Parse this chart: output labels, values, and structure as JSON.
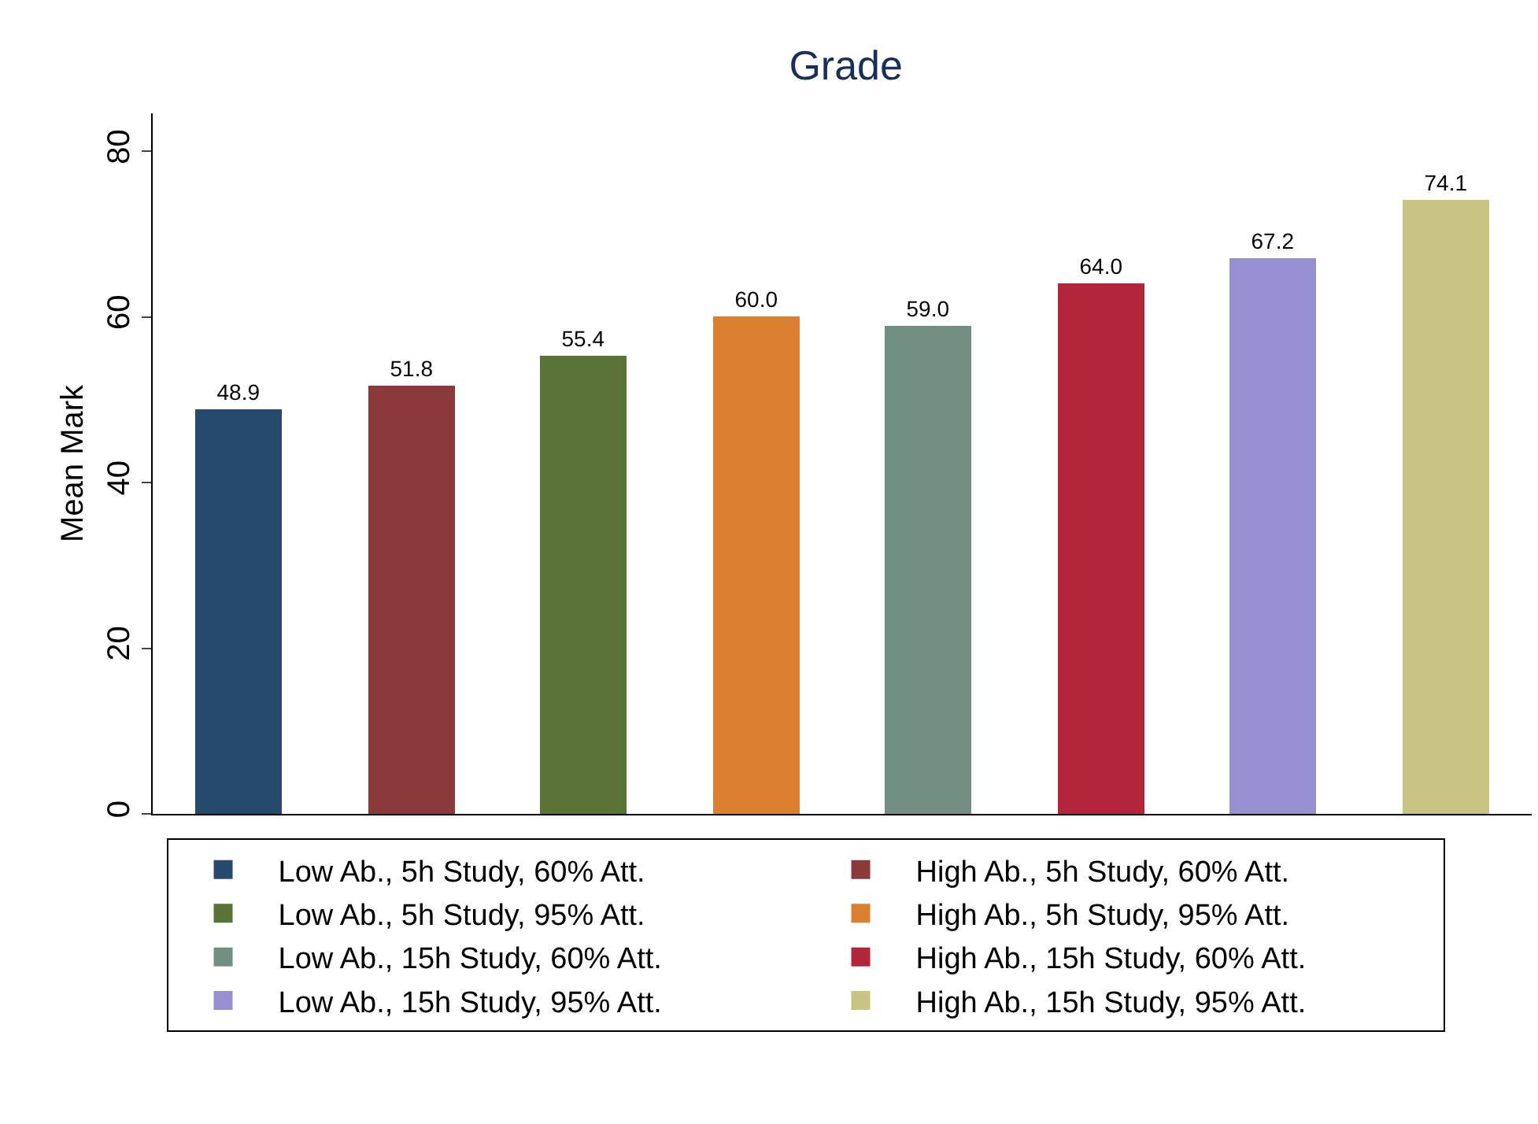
{
  "chart_data": {
    "type": "bar",
    "title": "Grade",
    "ylabel": "Mean Mark",
    "categories": [
      null,
      null,
      null,
      null,
      null,
      null,
      null,
      null
    ],
    "series": [
      {
        "name": "Low Ab., 5h Study, 60% Att.",
        "color": "#264a6e",
        "values": [
          48.9,
          null,
          null,
          null,
          null,
          null,
          null,
          null
        ],
        "value_labels": [
          "48.9",
          null,
          null,
          null,
          null,
          null,
          null,
          null
        ]
      },
      {
        "name": "High Ab., 5h Study, 60% Att.",
        "color": "#8b3a3c",
        "values": [
          null,
          51.8,
          null,
          null,
          null,
          null,
          null,
          null
        ],
        "value_labels": [
          null,
          "51.8",
          null,
          null,
          null,
          null,
          null,
          null
        ]
      },
      {
        "name": "Low Ab., 5h Study, 95% Att.",
        "color": "#5a7336",
        "values": [
          null,
          null,
          55.4,
          null,
          null,
          null,
          null,
          null
        ],
        "value_labels": [
          null,
          null,
          "55.4",
          null,
          null,
          null,
          null,
          null
        ]
      },
      {
        "name": "High Ab., 5h Study, 95% Att.",
        "color": "#db8030",
        "values": [
          null,
          null,
          null,
          60,
          null,
          null,
          null,
          null
        ],
        "value_labels": [
          null,
          null,
          null,
          "60.0",
          null,
          null,
          null,
          null
        ]
      },
      {
        "name": "Low Ab., 15h Study, 60% Att.",
        "color": "#738f83",
        "values": [
          null,
          null,
          null,
          null,
          59,
          null,
          null,
          null
        ],
        "value_labels": [
          null,
          null,
          null,
          null,
          "59.0",
          null,
          null,
          null
        ]
      },
      {
        "name": "High Ab., 15h Study, 60% Att.",
        "color": "#b3253a",
        "values": [
          null,
          null,
          null,
          null,
          null,
          64,
          null,
          null
        ],
        "value_labels": [
          null,
          null,
          null,
          null,
          null,
          "64.0",
          null,
          null
        ]
      },
      {
        "name": "Low Ab., 15h Study, 95% Att.",
        "color": "#968fd0",
        "values": [
          null,
          null,
          null,
          null,
          null,
          null,
          67.2,
          null
        ],
        "value_labels": [
          null,
          null,
          null,
          null,
          null,
          null,
          "67.2",
          null
        ]
      },
      {
        "name": "High Ab., 15h Study, 95% Att.",
        "color": "#c8c484",
        "values": [
          null,
          null,
          null,
          null,
          null,
          null,
          null,
          74.1
        ],
        "value_labels": [
          null,
          null,
          null,
          null,
          null,
          null,
          null,
          "74.1"
        ]
      }
    ],
    "ylim": [
      0,
      84.6
    ],
    "yticks": [
      0,
      20,
      40,
      60,
      80
    ],
    "grid": false,
    "legend": "bottom"
  }
}
